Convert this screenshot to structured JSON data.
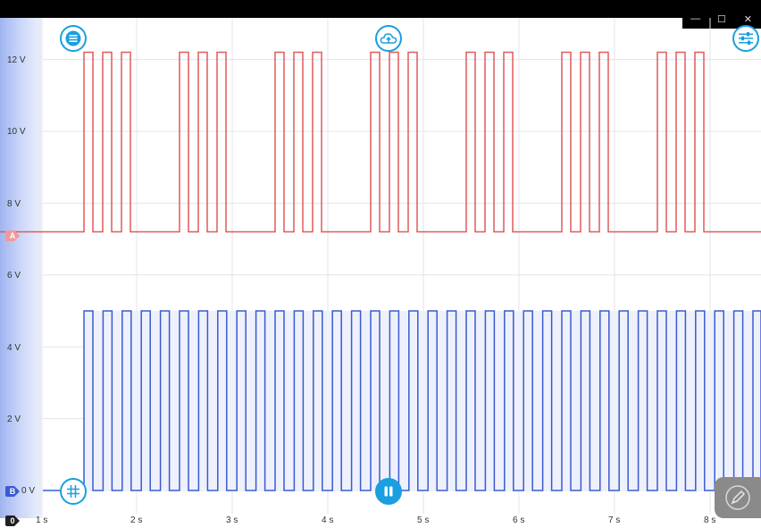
{
  "window": {
    "minimize_glyph": "—",
    "maximize_glyph": "☐",
    "close_glyph": "✕"
  },
  "y_axis": {
    "ticks": [
      "12 V",
      "10 V",
      "8 V",
      "6 V",
      "4 V",
      "2 V",
      "0 V"
    ],
    "range_v": [
      0,
      13
    ]
  },
  "x_axis": {
    "ticks": [
      "1 s",
      "2 s",
      "3 s",
      "4 s",
      "5 s",
      "6 s",
      "7 s",
      "8 s"
    ]
  },
  "channels": {
    "a": {
      "marker": "A",
      "color": "#e05a5a",
      "low_v": 7.2,
      "high_v": 12.2
    },
    "b": {
      "marker": "B",
      "color": "#3a5bd0",
      "low_v": 0.0,
      "high_v": 5.0
    },
    "zero": {
      "marker": "0"
    }
  },
  "icons": {
    "menu": "menu-icon",
    "upload": "cloud-upload-icon",
    "settings": "sliders-icon",
    "grid": "grid-icon",
    "pause": "pause-icon",
    "pen": "pen-icon"
  },
  "colors": {
    "accent": "#1a9fe0",
    "grid": "#e4e4e4"
  }
}
